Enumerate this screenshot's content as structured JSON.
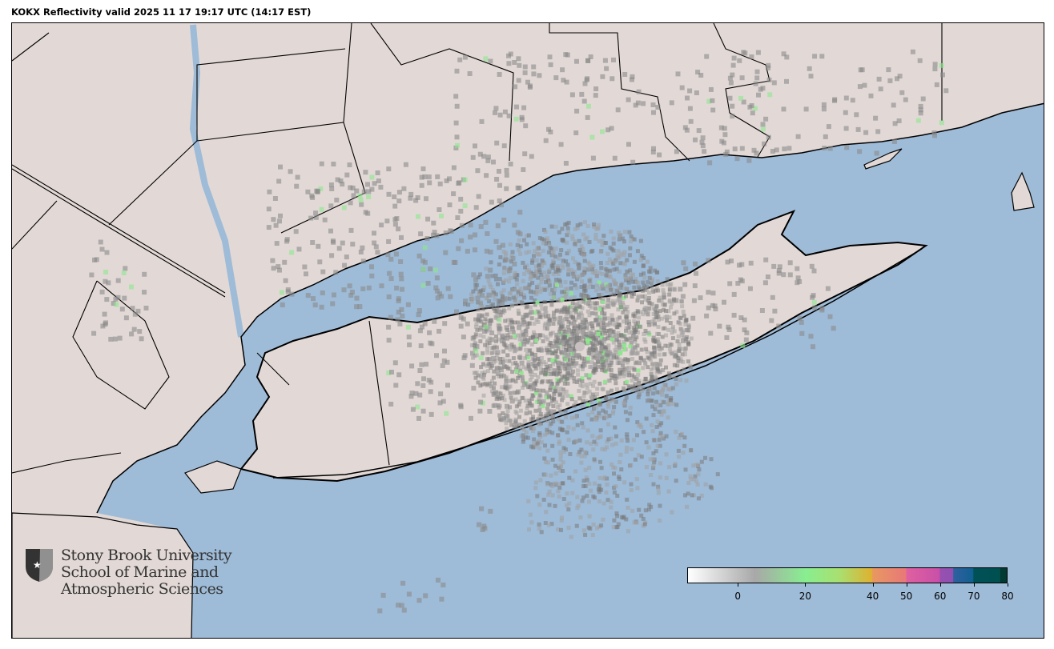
{
  "title": "KOKX Reflectivity valid 2025 11 17 19:17 UTC (14:17 EST)",
  "colors": {
    "land": "#e2d9d6",
    "water": "#9ebbd7",
    "border": "#000000",
    "radar_gray": "#8a8a8a",
    "radar_green": "#8ee68e"
  },
  "logo": {
    "icon": "shield-star-icon",
    "lines": [
      "Stony Brook University",
      "School of Marine and",
      "Atmospheric Sciences"
    ]
  },
  "colorbar": {
    "range": [
      -15,
      80
    ],
    "ticks": [
      "0",
      "20",
      "40",
      "50",
      "60",
      "70",
      "80"
    ],
    "tick_values": [
      0,
      20,
      40,
      50,
      60,
      70,
      80
    ],
    "stops": [
      {
        "v": -15,
        "c": "#ffffff"
      },
      {
        "v": 5,
        "c": "#a8a8a8"
      },
      {
        "v": 20,
        "c": "#88ee90"
      },
      {
        "v": 30,
        "c": "#a8e070"
      },
      {
        "v": 39.9,
        "c": "#e0b030"
      },
      {
        "v": 40,
        "c": "#e89860"
      },
      {
        "v": 50,
        "c": "#e87878"
      },
      {
        "v": 50.1,
        "c": "#e060a0"
      },
      {
        "v": 60,
        "c": "#c850a8"
      },
      {
        "v": 60.1,
        "c": "#9850b0"
      },
      {
        "v": 64,
        "c": "#9050b0"
      },
      {
        "v": 64.1,
        "c": "#3060a0"
      },
      {
        "v": 70,
        "c": "#106090"
      },
      {
        "v": 70.1,
        "c": "#005058"
      },
      {
        "v": 78,
        "c": "#005050"
      },
      {
        "v": 78.1,
        "c": "#003a30"
      },
      {
        "v": 80,
        "c": "#003a30"
      }
    ]
  }
}
